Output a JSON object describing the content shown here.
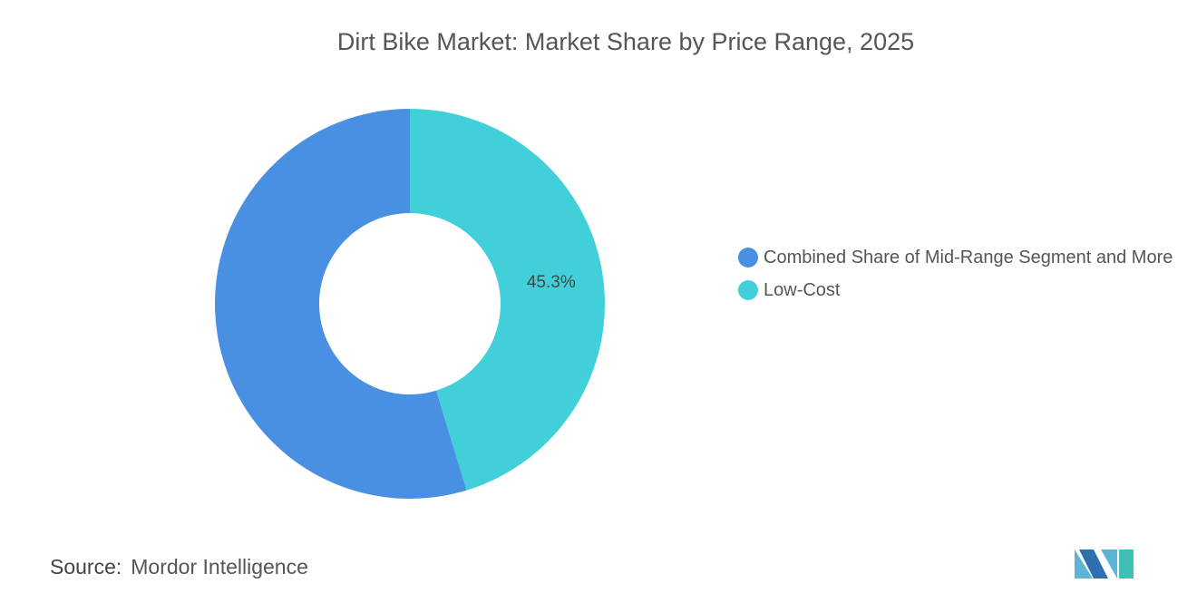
{
  "chart_data": {
    "type": "donut",
    "title": "Dirt Bike Market: Market Share by Price Range, 2025",
    "categories": [
      "Combined Share of Mid-Range Segment and More",
      "Low-Cost"
    ],
    "values": [
      54.7,
      45.3
    ],
    "value_labels": [
      null,
      "45.3%"
    ],
    "colors": [
      "#4a90e2",
      "#41d0d9"
    ],
    "legend": "right"
  },
  "source": {
    "label": "Source:",
    "name": "Mordor Intelligence"
  }
}
